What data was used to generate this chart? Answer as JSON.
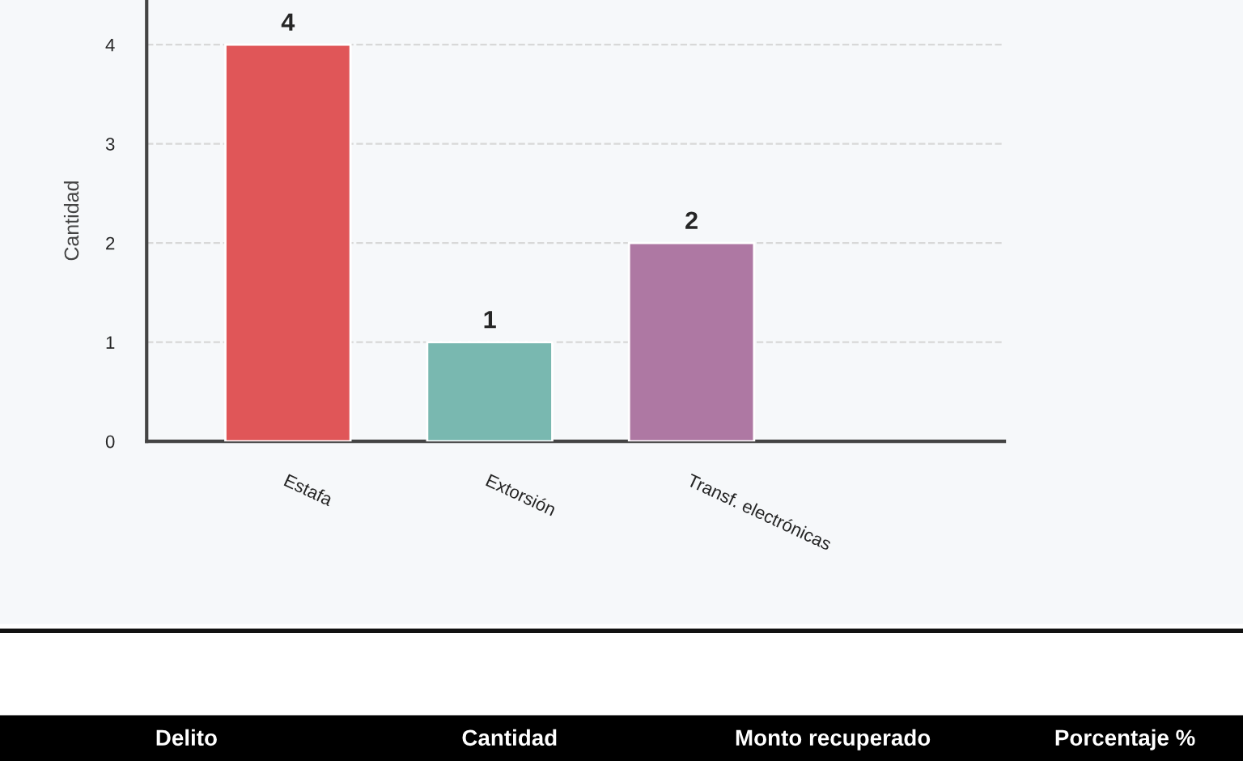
{
  "chart_data": {
    "type": "bar",
    "ylabel": "Cantidad",
    "categories": [
      "Estafa",
      "Extorsión",
      "Transf. electrónicas"
    ],
    "values": [
      4,
      1,
      2
    ],
    "colors": [
      "#e05658",
      "#79b8b0",
      "#ae78a3"
    ],
    "ylim": [
      0,
      4.45
    ],
    "yticks": [
      0,
      1,
      2,
      3,
      4
    ],
    "grid": "y",
    "data_labels": true,
    "annotations": [
      "Delito",
      "Cantidad",
      "Monto recuperado",
      "Porcentaje %"
    ]
  }
}
